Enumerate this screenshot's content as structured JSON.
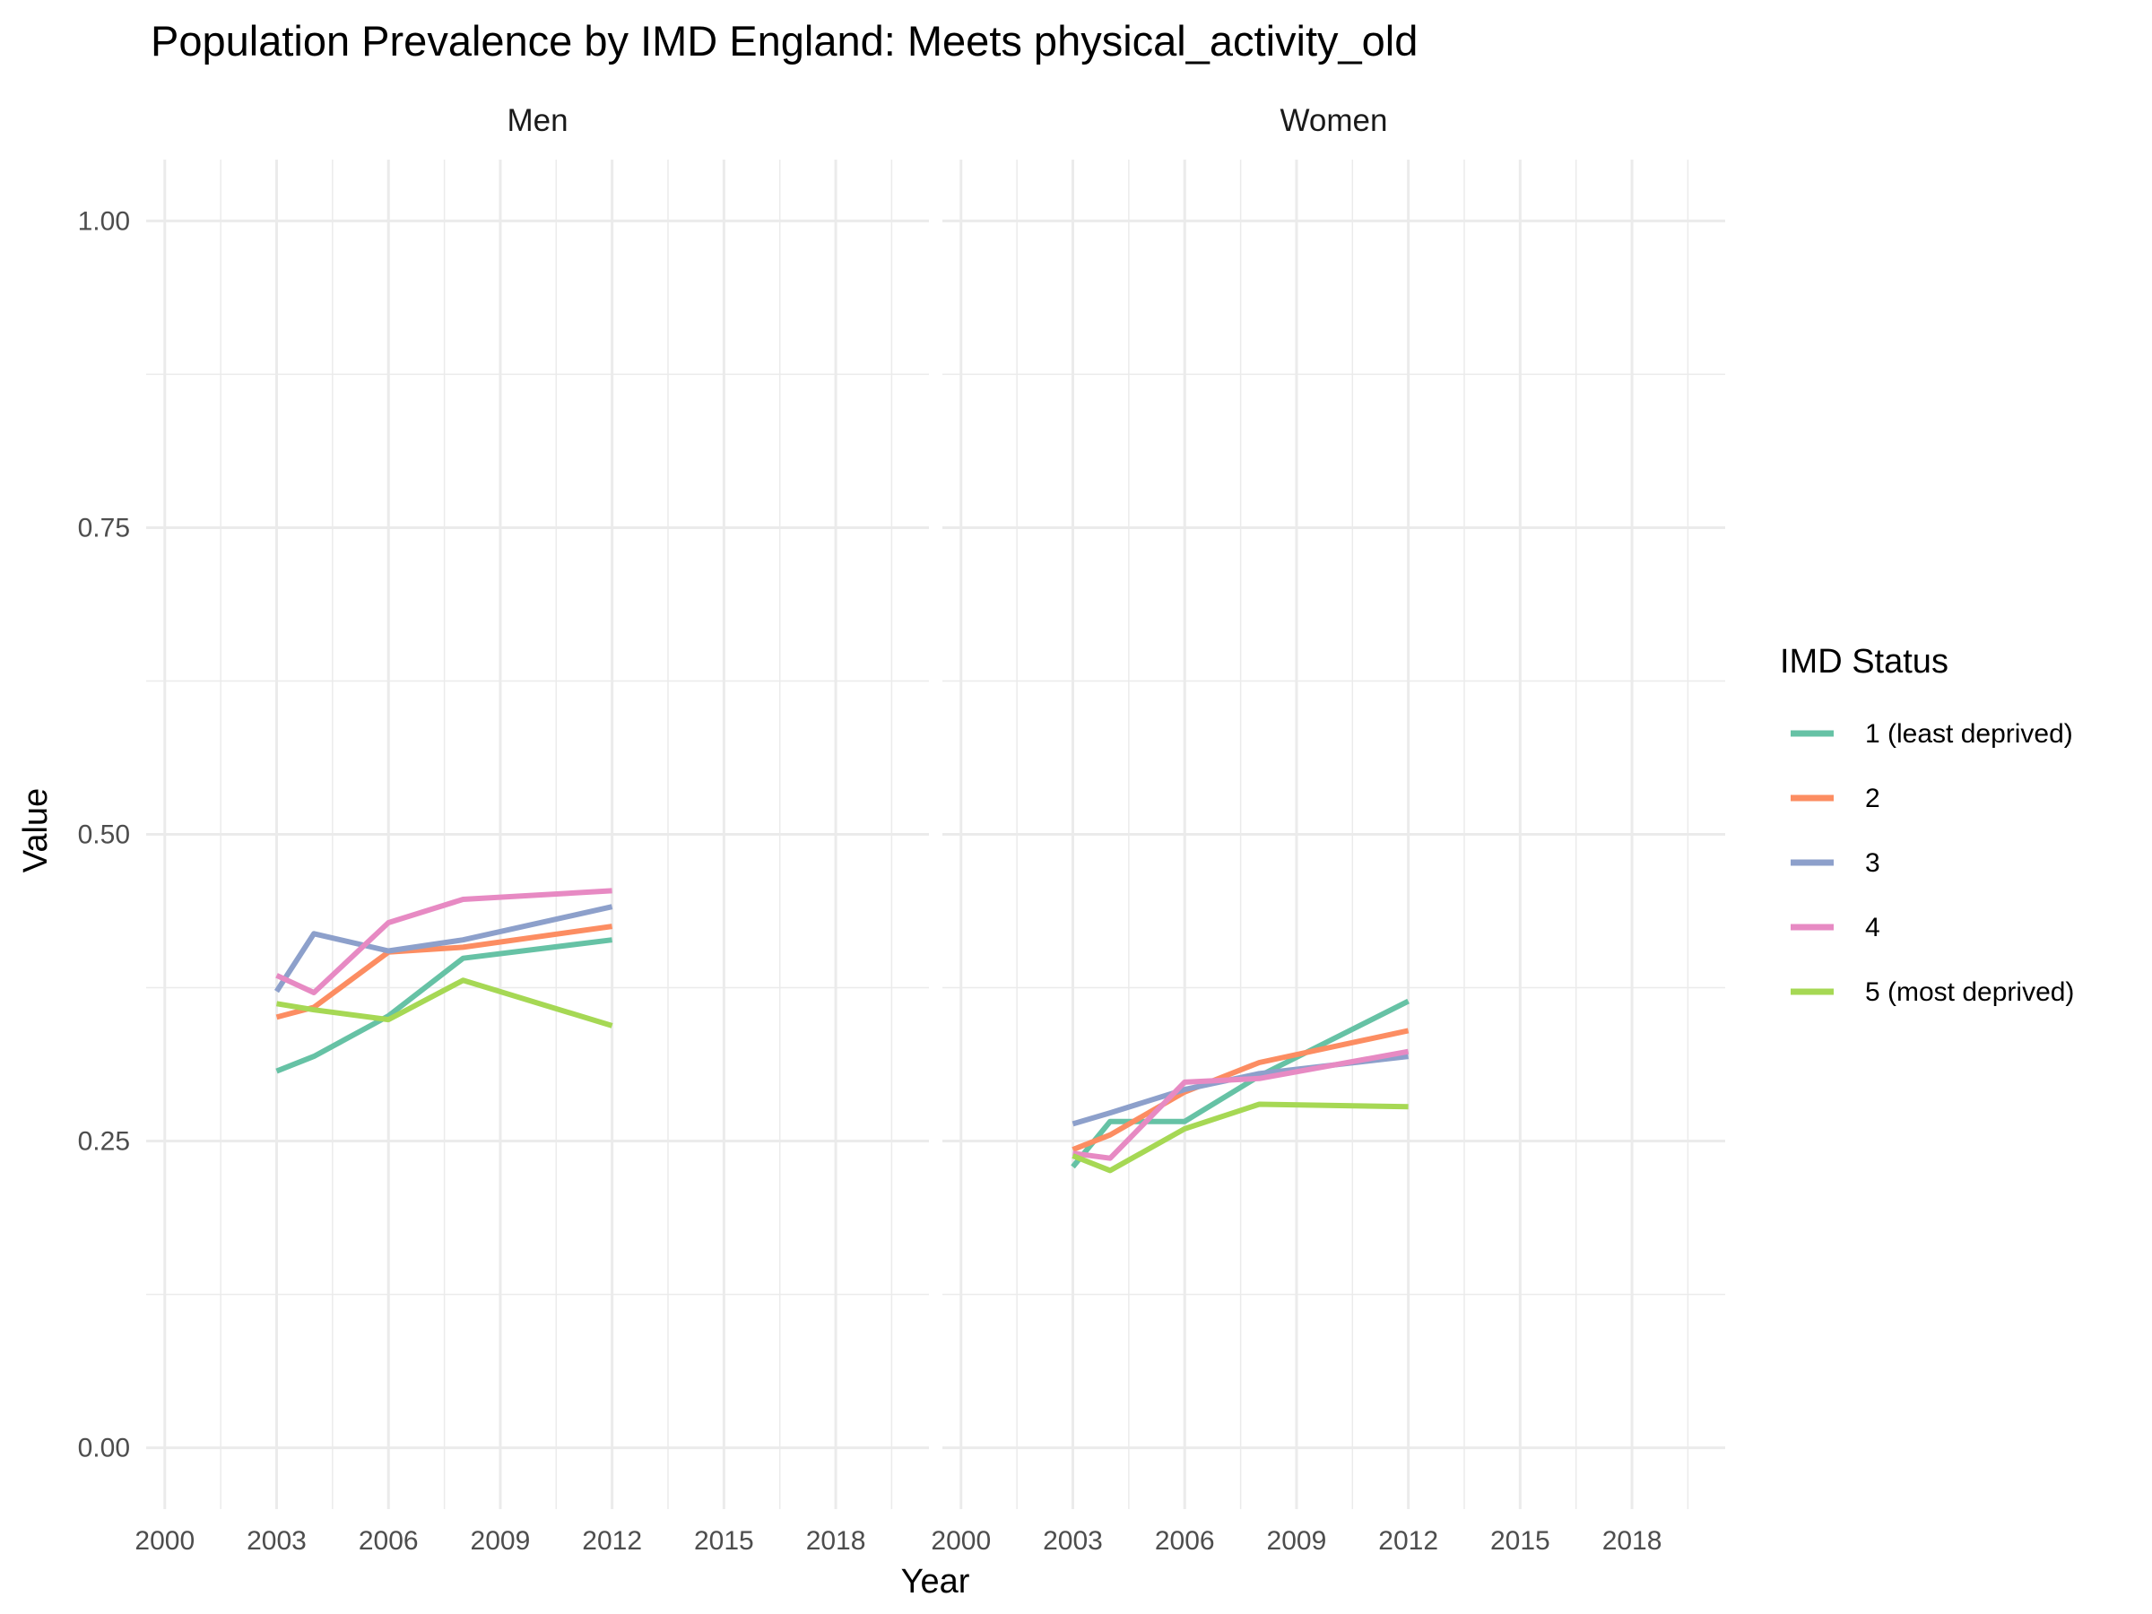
{
  "chart_data": {
    "type": "line",
    "title": "Population Prevalence by IMD England: Meets physical_activity_old",
    "xlabel": "Year",
    "ylabel": "Value",
    "xlim": [
      1999.5,
      2020.5
    ],
    "ylim": [
      -0.05,
      1.05
    ],
    "x_ticks": [
      2000,
      2003,
      2006,
      2009,
      2012,
      2015,
      2018
    ],
    "x_tick_labels": [
      "2000",
      "2003",
      "2006",
      "2009",
      "2012",
      "2015",
      "2018"
    ],
    "y_ticks": [
      0,
      0.25,
      0.5,
      0.75,
      1
    ],
    "y_tick_labels": [
      "0.00",
      "0.25",
      "0.50",
      "0.75",
      "1.00"
    ],
    "grid": true,
    "legend": {
      "title": "IMD Status",
      "placement": "right",
      "entries": [
        "1 (least deprived)",
        "2",
        "3",
        "4",
        "5 (most deprived)"
      ]
    },
    "colors": [
      "#66c2a5",
      "#fc8d62",
      "#8da0cb",
      "#e78ac3",
      "#a6d854"
    ],
    "panels": [
      {
        "label": "Men",
        "series": [
          {
            "name": "1 (least deprived)",
            "x": [
              2003,
              2004,
              2006,
              2008,
              2012
            ],
            "values": [
              0.307,
              0.319,
              0.352,
              0.399,
              0.414
            ]
          },
          {
            "name": "2",
            "x": [
              2003,
              2004,
              2006,
              2008,
              2012
            ],
            "values": [
              0.351,
              0.359,
              0.404,
              0.408,
              0.425
            ]
          },
          {
            "name": "3",
            "x": [
              2003,
              2004,
              2006,
              2008,
              2012
            ],
            "values": [
              0.372,
              0.419,
              0.405,
              0.414,
              0.441
            ]
          },
          {
            "name": "4",
            "x": [
              2003,
              2004,
              2006,
              2008,
              2012
            ],
            "values": [
              0.385,
              0.371,
              0.428,
              0.447,
              0.454
            ]
          },
          {
            "name": "5 (most deprived)",
            "x": [
              2003,
              2004,
              2006,
              2008,
              2012
            ],
            "values": [
              0.362,
              0.357,
              0.349,
              0.381,
              0.344
            ]
          }
        ]
      },
      {
        "label": "Women",
        "series": [
          {
            "name": "1 (least deprived)",
            "x": [
              2003,
              2004,
              2006,
              2008,
              2012
            ],
            "values": [
              0.229,
              0.266,
              0.266,
              0.303,
              0.364
            ]
          },
          {
            "name": "2",
            "x": [
              2003,
              2004,
              2006,
              2008,
              2012
            ],
            "values": [
              0.243,
              0.255,
              0.29,
              0.314,
              0.34
            ]
          },
          {
            "name": "3",
            "x": [
              2003,
              2004,
              2006,
              2008,
              2012
            ],
            "values": [
              0.264,
              0.273,
              0.292,
              0.305,
              0.319
            ]
          },
          {
            "name": "4",
            "x": [
              2003,
              2004,
              2006,
              2008,
              2012
            ],
            "values": [
              0.24,
              0.236,
              0.298,
              0.301,
              0.323
            ]
          },
          {
            "name": "5 (most deprived)",
            "x": [
              2003,
              2004,
              2006,
              2008,
              2012
            ],
            "values": [
              0.238,
              0.226,
              0.26,
              0.28,
              0.278
            ]
          }
        ]
      }
    ]
  }
}
